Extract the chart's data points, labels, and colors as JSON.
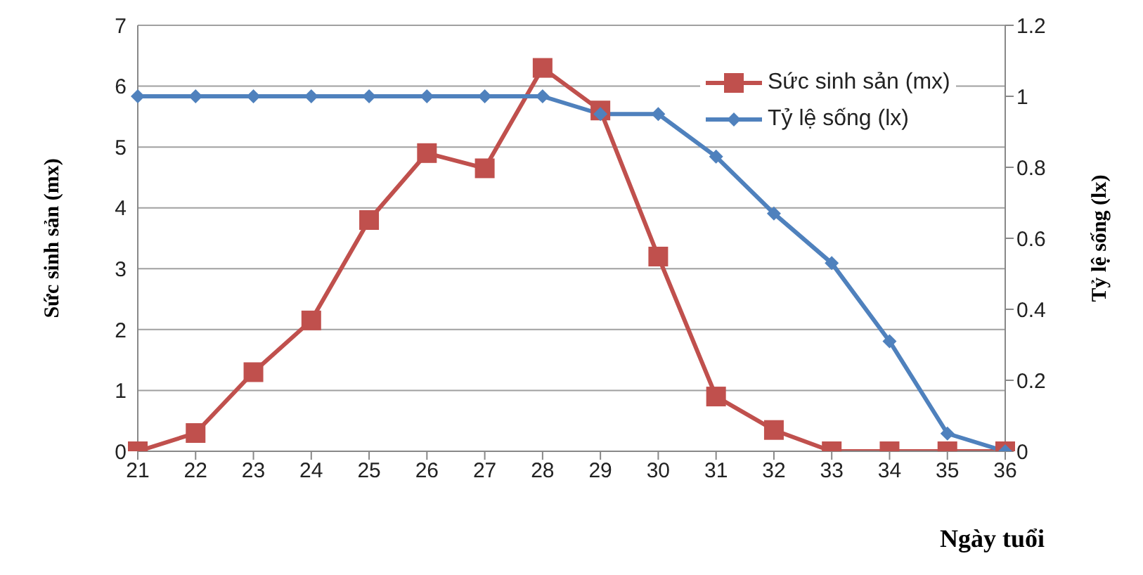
{
  "chart_data": {
    "type": "line",
    "xlabel": "Ngày tuổi",
    "ylabel": "Sức sinh sản (mx)",
    "y2label": "Tỷ lệ sống (lx)",
    "categories": [
      "21",
      "22",
      "23",
      "24",
      "25",
      "26",
      "27",
      "28",
      "29",
      "30",
      "31",
      "32",
      "33",
      "34",
      "35",
      "36"
    ],
    "series": [
      {
        "name": "Sức sinh sản (mx)",
        "color": "#c0504d",
        "marker": "square",
        "values": [
          0,
          0.3,
          1.3,
          2.15,
          3.8,
          4.9,
          4.65,
          6.3,
          5.6,
          3.2,
          0.9,
          0.35,
          0,
          0,
          0,
          0
        ]
      },
      {
        "name": "Tỷ lệ sống (lx)",
        "color": "#4f81bd",
        "marker": "diamond",
        "axis": "y2",
        "values": [
          1,
          1,
          1,
          1,
          1,
          1,
          1,
          1,
          0.95,
          0.95,
          0.83,
          0.67,
          0.53,
          0.31,
          0.05,
          0
        ]
      }
    ],
    "ylim": [
      0,
      7
    ],
    "yticks": [
      0,
      1,
      2,
      3,
      4,
      5,
      6,
      7
    ],
    "y2lim": [
      0,
      1.2
    ],
    "y2ticks": [
      0,
      0.2,
      0.4,
      0.6,
      0.8,
      1,
      1.2
    ],
    "grid": "y",
    "legend": "top right",
    "line_style": "solid"
  }
}
